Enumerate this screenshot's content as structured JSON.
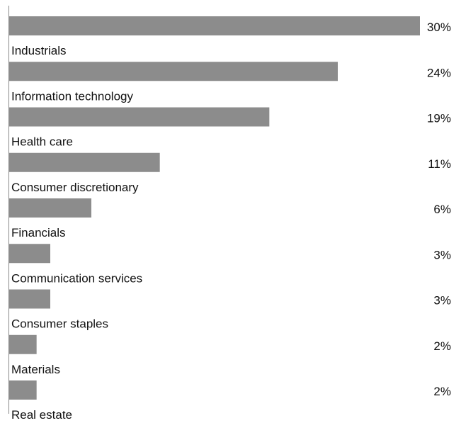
{
  "chart_data": {
    "type": "bar",
    "orientation": "horizontal",
    "categories": [
      "Industrials",
      "Information technology",
      "Health care",
      "Consumer discretionary",
      "Financials",
      "Communication services",
      "Consumer staples",
      "Materials",
      "Real estate"
    ],
    "values": [
      30,
      24,
      19,
      11,
      6,
      3,
      3,
      2,
      2
    ],
    "value_labels": [
      "30%",
      "24%",
      "19%",
      "11%",
      "6%",
      "3%",
      "3%",
      "2%",
      "2%"
    ],
    "xlim": [
      0,
      30
    ],
    "grid": false,
    "legend": "none",
    "colors": {
      "bar": "#8c8c8c",
      "axis": "#888888",
      "text": "#111111"
    }
  }
}
